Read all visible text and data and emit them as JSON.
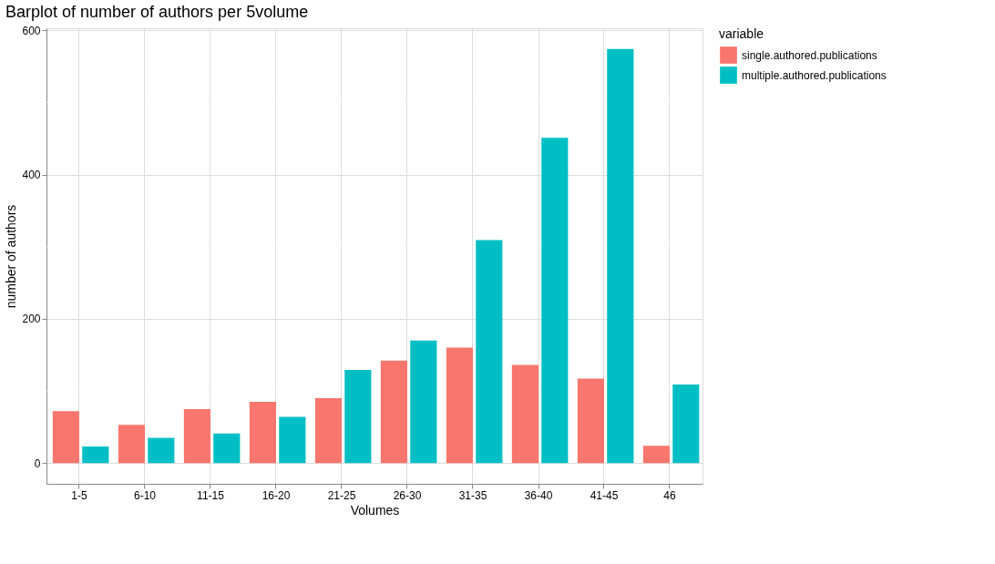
{
  "chart_data": {
    "type": "bar",
    "title": "Barplot of number of authors per 5volume",
    "xlabel": "Volumes",
    "ylabel": "number of authors",
    "legend_title": "variable",
    "categories": [
      "1-5",
      "6-10",
      "11-15",
      "16-20",
      "21-25",
      "26-30",
      "31-35",
      "36-40",
      "41-45",
      "46"
    ],
    "series": [
      {
        "name": "single.authored.publications",
        "color": "#f8766d",
        "values": [
          72,
          53,
          75,
          85,
          90,
          142,
          160,
          136,
          117,
          24
        ]
      },
      {
        "name": "multiple.authored.publications",
        "color": "#00bfc4",
        "values": [
          23,
          35,
          41,
          64,
          129,
          170,
          309,
          451,
          574,
          109
        ]
      }
    ],
    "ylim": [
      -28.7,
      602.7
    ],
    "yticks": [
      0,
      200,
      400,
      600
    ],
    "grid": true,
    "legend": "right"
  }
}
